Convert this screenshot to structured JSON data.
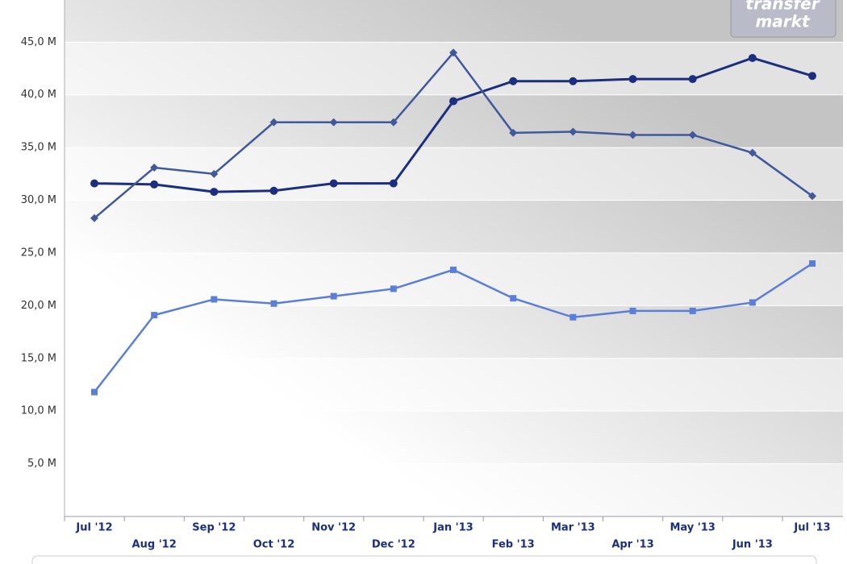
{
  "chart_data": {
    "type": "line",
    "watermark": [
      "transfer",
      "markt"
    ],
    "categories": [
      "Jul '12",
      "Aug '12",
      "Sep '12",
      "Oct '12",
      "Nov '12",
      "Dec '12",
      "Jan '13",
      "Feb '13",
      "Mar '13",
      "Apr '13",
      "May '13",
      "Jun '13",
      "Jul '13"
    ],
    "series": [
      {
        "color": "#1b2f7e",
        "marker": "circle",
        "values": [
          31.6,
          31.5,
          30.8,
          30.9,
          31.6,
          31.6,
          39.4,
          41.3,
          41.3,
          41.5,
          41.5,
          43.5,
          41.8
        ]
      },
      {
        "color": "#40599a",
        "marker": "diamond",
        "values": [
          28.3,
          33.1,
          32.5,
          37.4,
          37.4,
          37.4,
          44.0,
          36.4,
          36.5,
          36.2,
          36.2,
          34.5,
          30.4
        ]
      },
      {
        "color": "#5b7fd6",
        "marker": "square",
        "values": [
          11.8,
          19.1,
          20.6,
          20.2,
          20.9,
          21.6,
          23.4,
          20.7,
          18.9,
          19.5,
          19.5,
          20.3,
          24.0
        ]
      }
    ],
    "ylim": [
      0,
      49
    ],
    "yticks": [
      {
        "value": 5,
        "label": "5,0 M"
      },
      {
        "value": 10,
        "label": "10,0 M"
      },
      {
        "value": 15,
        "label": "15,0 M"
      },
      {
        "value": 20,
        "label": "20,0 M"
      },
      {
        "value": 25,
        "label": "25,0 M"
      },
      {
        "value": 30,
        "label": "30,0 M"
      },
      {
        "value": 35,
        "label": "35,0 M"
      },
      {
        "value": 40,
        "label": "40,0 M"
      },
      {
        "value": 45,
        "label": "45,0 M"
      }
    ],
    "grid": true
  }
}
